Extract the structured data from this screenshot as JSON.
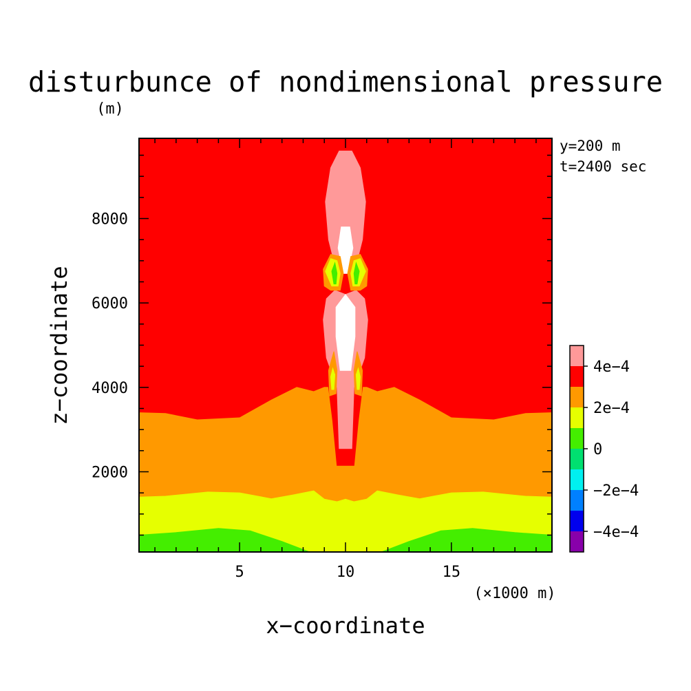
{
  "chart_data": {
    "type": "heatmap",
    "title": "disturbunce of nondimensional pressure",
    "unit_label": "(m)",
    "xlabel": "x−coordinate",
    "ylabel": "z−coordinate",
    "x_unit": "(×1000 m)",
    "annotations": [
      "y=200 m",
      "t=2400 sec"
    ],
    "xlim": [
      0.25,
      19.75
    ],
    "ylim": [
      100,
      9900
    ],
    "xticks": [
      5,
      10,
      15
    ],
    "yticks": [
      2000,
      4000,
      6000,
      8000
    ],
    "x_minor_step": 1,
    "y_minor_step": 500,
    "colorbar": {
      "ticks": [
        "4e−4",
        "2e−4",
        "0",
        "−2e−4",
        "−4e−4"
      ],
      "levels": [
        {
          "color": "#ff9999",
          "range": [
            0.0004,
            0.0005
          ]
        },
        {
          "color": "#ff0000",
          "range": [
            0.0003,
            0.0004
          ]
        },
        {
          "color": "#ff9900",
          "range": [
            0.0002,
            0.0003
          ]
        },
        {
          "color": "#e6ff00",
          "range": [
            0.0001,
            0.0002
          ]
        },
        {
          "color": "#44ee00",
          "range": [
            0.0,
            0.0001
          ]
        },
        {
          "color": "#00e070",
          "range": [
            -0.0001,
            0.0
          ]
        },
        {
          "color": "#00f0f0",
          "range": [
            -0.0002,
            -0.0001
          ]
        },
        {
          "color": "#0080ff",
          "range": [
            -0.0003,
            -0.0002
          ]
        },
        {
          "color": "#0000ee",
          "range": [
            -0.0004,
            -0.0003
          ]
        },
        {
          "color": "#8800aa",
          "range": [
            -0.0005,
            -0.0004
          ]
        }
      ]
    },
    "regions": [
      {
        "level": "red",
        "color": "#ff0000",
        "points": [
          [
            0.25,
            3400
          ],
          [
            1.5,
            3380
          ],
          [
            3,
            3230
          ],
          [
            5,
            3280
          ],
          [
            6.5,
            3700
          ],
          [
            7.7,
            4000
          ],
          [
            8.5,
            3900
          ],
          [
            9,
            4000
          ],
          [
            9.6,
            4000
          ],
          [
            10,
            4000
          ],
          [
            10.4,
            4000
          ],
          [
            11,
            4000
          ],
          [
            11.5,
            3900
          ],
          [
            12.3,
            4000
          ],
          [
            13.5,
            3700
          ],
          [
            15,
            3280
          ],
          [
            17,
            3230
          ],
          [
            18.5,
            3380
          ],
          [
            19.75,
            3400
          ],
          [
            19.75,
            9900
          ],
          [
            0.25,
            9900
          ]
        ]
      },
      {
        "level": "orange",
        "color": "#ff9900",
        "points": [
          [
            0.25,
            1400
          ],
          [
            1.5,
            1420
          ],
          [
            3.5,
            1520
          ],
          [
            5,
            1500
          ],
          [
            6.5,
            1360
          ],
          [
            7.5,
            1450
          ],
          [
            8.5,
            1550
          ],
          [
            9,
            1350
          ],
          [
            9.6,
            1290
          ],
          [
            10,
            1350
          ],
          [
            10.4,
            1290
          ],
          [
            11,
            1350
          ],
          [
            11.5,
            1550
          ],
          [
            12.5,
            1450
          ],
          [
            13.5,
            1360
          ],
          [
            15,
            1500
          ],
          [
            16.5,
            1520
          ],
          [
            18.5,
            1420
          ],
          [
            19.75,
            1400
          ],
          [
            19.75,
            3400
          ],
          [
            18.5,
            3380
          ],
          [
            17,
            3230
          ],
          [
            15,
            3280
          ],
          [
            13.5,
            3700
          ],
          [
            12.3,
            4000
          ],
          [
            11.5,
            3900
          ],
          [
            11,
            4000
          ],
          [
            10.4,
            4000
          ],
          [
            10,
            4000
          ],
          [
            9.6,
            4000
          ],
          [
            9,
            4000
          ],
          [
            8.5,
            3900
          ],
          [
            7.7,
            4000
          ],
          [
            6.5,
            3700
          ],
          [
            5,
            3280
          ],
          [
            3,
            3230
          ],
          [
            1.5,
            3380
          ],
          [
            0.25,
            3400
          ]
        ]
      },
      {
        "level": "yellow",
        "color": "#e6ff00",
        "points": [
          [
            0.25,
            500
          ],
          [
            2,
            560
          ],
          [
            4,
            660
          ],
          [
            5.5,
            600
          ],
          [
            7,
            350
          ],
          [
            8.3,
            100
          ],
          [
            11.7,
            100
          ],
          [
            13,
            350
          ],
          [
            14.5,
            600
          ],
          [
            16,
            660
          ],
          [
            18,
            560
          ],
          [
            19.75,
            500
          ],
          [
            19.75,
            1400
          ],
          [
            18.5,
            1420
          ],
          [
            16.5,
            1520
          ],
          [
            15,
            1500
          ],
          [
            13.5,
            1360
          ],
          [
            12.5,
            1450
          ],
          [
            11.5,
            1550
          ],
          [
            11,
            1350
          ],
          [
            10.4,
            1290
          ],
          [
            10,
            1350
          ],
          [
            9.6,
            1290
          ],
          [
            9,
            1350
          ],
          [
            8.5,
            1550
          ],
          [
            7.5,
            1450
          ],
          [
            6.5,
            1360
          ],
          [
            5,
            1500
          ],
          [
            3.5,
            1520
          ],
          [
            1.5,
            1420
          ],
          [
            0.25,
            1400
          ]
        ]
      },
      {
        "level": "green",
        "color": "#44ee00",
        "points": [
          [
            0.25,
            100
          ],
          [
            8.3,
            100
          ],
          [
            7,
            350
          ],
          [
            5.5,
            600
          ],
          [
            4,
            660
          ],
          [
            2,
            560
          ],
          [
            0.25,
            500
          ]
        ]
      },
      {
        "level": "green",
        "color": "#44ee00",
        "points": [
          [
            11.7,
            100
          ],
          [
            19.75,
            100
          ],
          [
            19.75,
            500
          ],
          [
            18,
            560
          ],
          [
            16,
            660
          ],
          [
            14.5,
            600
          ],
          [
            13,
            350
          ]
        ]
      },
      {
        "level": "red",
        "color": "#ff0000",
        "points": [
          [
            9.6,
            2150
          ],
          [
            10.4,
            2150
          ],
          [
            10.6,
            3200
          ],
          [
            10.8,
            4000
          ],
          [
            11.0,
            4700
          ],
          [
            10.9,
            5800
          ],
          [
            10.6,
            6100
          ],
          [
            10.9,
            6450
          ],
          [
            10.8,
            7300
          ],
          [
            10.5,
            8000
          ],
          [
            10,
            8300
          ],
          [
            9.5,
            8000
          ],
          [
            9.2,
            7300
          ],
          [
            9.1,
            6450
          ],
          [
            9.4,
            6100
          ],
          [
            9.1,
            5800
          ],
          [
            9.0,
            4700
          ],
          [
            9.2,
            4000
          ],
          [
            9.4,
            3200
          ]
        ]
      },
      {
        "level": "pink",
        "color": "#ff9999",
        "points": [
          [
            9.7,
            2550
          ],
          [
            10.3,
            2550
          ],
          [
            10.4,
            4000
          ],
          [
            10.9,
            4700
          ],
          [
            11.05,
            5600
          ],
          [
            10.9,
            6100
          ],
          [
            10.5,
            6300
          ],
          [
            10,
            6200
          ],
          [
            9.5,
            6300
          ],
          [
            9.1,
            6100
          ],
          [
            8.95,
            5600
          ],
          [
            9.1,
            4700
          ],
          [
            9.6,
            4000
          ]
        ]
      },
      {
        "level": "pink",
        "color": "#ff9999",
        "points": [
          [
            9.6,
            6700
          ],
          [
            10.4,
            6700
          ],
          [
            10.8,
            7500
          ],
          [
            10.95,
            8400
          ],
          [
            10.7,
            9200
          ],
          [
            10.3,
            9600
          ],
          [
            9.7,
            9600
          ],
          [
            9.3,
            9200
          ],
          [
            9.05,
            8400
          ],
          [
            9.2,
            7500
          ]
        ]
      },
      {
        "level": "white",
        "color": "#ffffff",
        "points": [
          [
            9.75,
            4400
          ],
          [
            10.25,
            4400
          ],
          [
            10.45,
            5200
          ],
          [
            10.45,
            5900
          ],
          [
            10,
            6200
          ],
          [
            9.55,
            5900
          ],
          [
            9.55,
            5200
          ]
        ]
      },
      {
        "level": "white",
        "color": "#ffffff",
        "points": [
          [
            9.9,
            6700
          ],
          [
            10.1,
            6700
          ],
          [
            10.35,
            7300
          ],
          [
            10.2,
            7800
          ],
          [
            9.8,
            7800
          ],
          [
            9.65,
            7300
          ]
        ]
      },
      {
        "level": "orange",
        "color": "#ff9900",
        "points": [
          [
            9.3,
            6300
          ],
          [
            9.75,
            6300
          ],
          [
            9.9,
            6700
          ],
          [
            9.75,
            7100
          ],
          [
            9.3,
            7150
          ],
          [
            8.95,
            6800
          ],
          [
            9.0,
            6400
          ]
        ]
      },
      {
        "level": "yellow",
        "color": "#e6ff00",
        "points": [
          [
            9.35,
            6400
          ],
          [
            9.65,
            6400
          ],
          [
            9.75,
            6700
          ],
          [
            9.6,
            7000
          ],
          [
            9.3,
            7050
          ],
          [
            9.05,
            6750
          ]
        ]
      },
      {
        "level": "green",
        "color": "#44ee00",
        "points": [
          [
            9.45,
            6450
          ],
          [
            9.55,
            6450
          ],
          [
            9.6,
            6700
          ],
          [
            9.5,
            6950
          ],
          [
            9.35,
            6750
          ]
        ]
      },
      {
        "level": "orange",
        "color": "#ff9900",
        "points": [
          [
            10.25,
            6300
          ],
          [
            10.7,
            6300
          ],
          [
            11.0,
            6400
          ],
          [
            11.05,
            6800
          ],
          [
            10.7,
            7150
          ],
          [
            10.25,
            7100
          ],
          [
            10.1,
            6700
          ]
        ]
      },
      {
        "level": "yellow",
        "color": "#e6ff00",
        "points": [
          [
            10.35,
            6400
          ],
          [
            10.65,
            6400
          ],
          [
            10.95,
            6750
          ],
          [
            10.7,
            7050
          ],
          [
            10.4,
            7000
          ],
          [
            10.25,
            6700
          ]
        ]
      },
      {
        "level": "green",
        "color": "#44ee00",
        "points": [
          [
            10.45,
            6450
          ],
          [
            10.55,
            6450
          ],
          [
            10.65,
            6750
          ],
          [
            10.5,
            6950
          ],
          [
            10.4,
            6700
          ]
        ]
      },
      {
        "level": "orange",
        "color": "#ff9900",
        "points": [
          [
            9.25,
            3800
          ],
          [
            9.55,
            3850
          ],
          [
            9.6,
            4400
          ],
          [
            9.45,
            4850
          ],
          [
            9.2,
            4400
          ]
        ]
      },
      {
        "level": "yellow",
        "color": "#e6ff00",
        "points": [
          [
            9.35,
            3950
          ],
          [
            9.45,
            3950
          ],
          [
            9.5,
            4300
          ],
          [
            9.4,
            4450
          ],
          [
            9.3,
            4250
          ]
        ]
      },
      {
        "level": "orange",
        "color": "#ff9900",
        "points": [
          [
            10.45,
            3850
          ],
          [
            10.75,
            3800
          ],
          [
            10.8,
            4400
          ],
          [
            10.55,
            4850
          ],
          [
            10.4,
            4400
          ]
        ]
      },
      {
        "level": "yellow",
        "color": "#e6ff00",
        "points": [
          [
            10.55,
            3950
          ],
          [
            10.65,
            3950
          ],
          [
            10.7,
            4250
          ],
          [
            10.6,
            4450
          ],
          [
            10.5,
            4300
          ]
        ]
      }
    ]
  }
}
